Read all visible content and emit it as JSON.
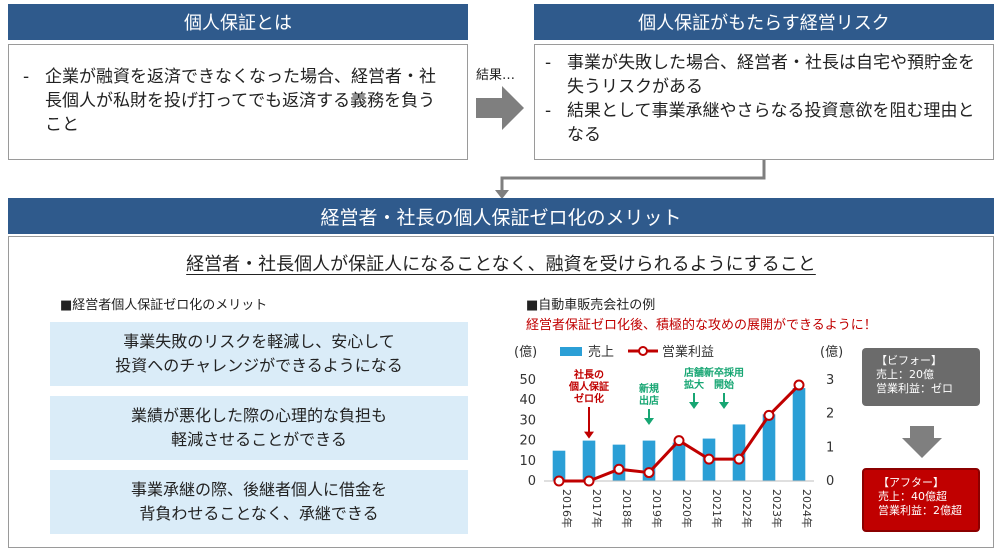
{
  "top_left": {
    "header": "個人保証とは",
    "bullet": "企業が融資を返済できなくなった場合、経営者・社長個人が私財を投げ打ってでも返済する義務を負うこと"
  },
  "connector_label": "結果…",
  "top_right": {
    "header": "個人保証がもたらす経営リスク",
    "bullets": [
      "事業が失敗した場合、経営者・社長は自宅や預貯金を失うリスクがある",
      "結果として事業承継やさらなる投資意欲を阻む理由となる"
    ]
  },
  "main": {
    "header": "経営者・社長の個人保証ゼロ化のメリット",
    "subtitle": "経営者・社長個人が保証人になることなく、融資を受けられるようにすること",
    "left_title": "■経営者個人保証ゼロ化のメリット",
    "merits": [
      "事業失敗のリスクを軽減し、安心して\n投資へのチャレンジができるようになる",
      "業績が悪化した際の心理的な負担も\n軽減させることができる",
      "事業承継の際、後継者個人に借金を\n背負わせることなく、承継できる"
    ],
    "right_title": "■自動車販売会社の例",
    "right_subtitle": "経営者保証ゼロ化後、積極的な攻めの展開ができるように！"
  },
  "chart_data": {
    "type": "bar+line",
    "categories": [
      "2016年",
      "2017年",
      "2018年",
      "2019年",
      "2020年",
      "2021年",
      "2022年",
      "2023年",
      "2024年"
    ],
    "left_unit": "(億)",
    "right_unit": "(億)",
    "left_ticks": [
      "0",
      "10",
      "20",
      "30",
      "40",
      "50"
    ],
    "right_ticks": [
      "0",
      "1",
      "2",
      "3"
    ],
    "ylim_left": [
      0,
      50
    ],
    "ylim_right": [
      0,
      3
    ],
    "series": [
      {
        "name": "売上",
        "axis": "left",
        "kind": "bar",
        "color": "#2b9fd6",
        "values": [
          15,
          20,
          18,
          20,
          19,
          21,
          28,
          33,
          46
        ]
      },
      {
        "name": "営業利益",
        "axis": "right",
        "kind": "line",
        "color": "#c00000",
        "values": [
          0,
          0,
          0.35,
          0.25,
          1.2,
          0.65,
          0.65,
          1.95,
          2.85
        ]
      }
    ],
    "annotations": [
      {
        "text": "社長の\n個人保証\nゼロ化",
        "category": 1,
        "color": "#c00000"
      },
      {
        "text": "新規\n出店",
        "category": 3,
        "color": "#17a673"
      },
      {
        "text": "店舗\n拡大",
        "category": 4.5,
        "color": "#17a673"
      },
      {
        "text": "新卒採用\n開始",
        "category": 5.5,
        "color": "#17a673"
      }
    ]
  },
  "before_box": {
    "title": "【ビフォー】",
    "sales": "売上：20億",
    "profit": "営業利益：ゼロ"
  },
  "after_box": {
    "title": "【アフター】",
    "sales": "売上：40億超",
    "profit": "営業利益：2億超"
  },
  "colors": {
    "header": "#2f5a8c",
    "merit_bg": "#daecf8",
    "accent_red": "#c00000",
    "before_bg": "#6b6b6b",
    "after_bg": "#c00000"
  }
}
